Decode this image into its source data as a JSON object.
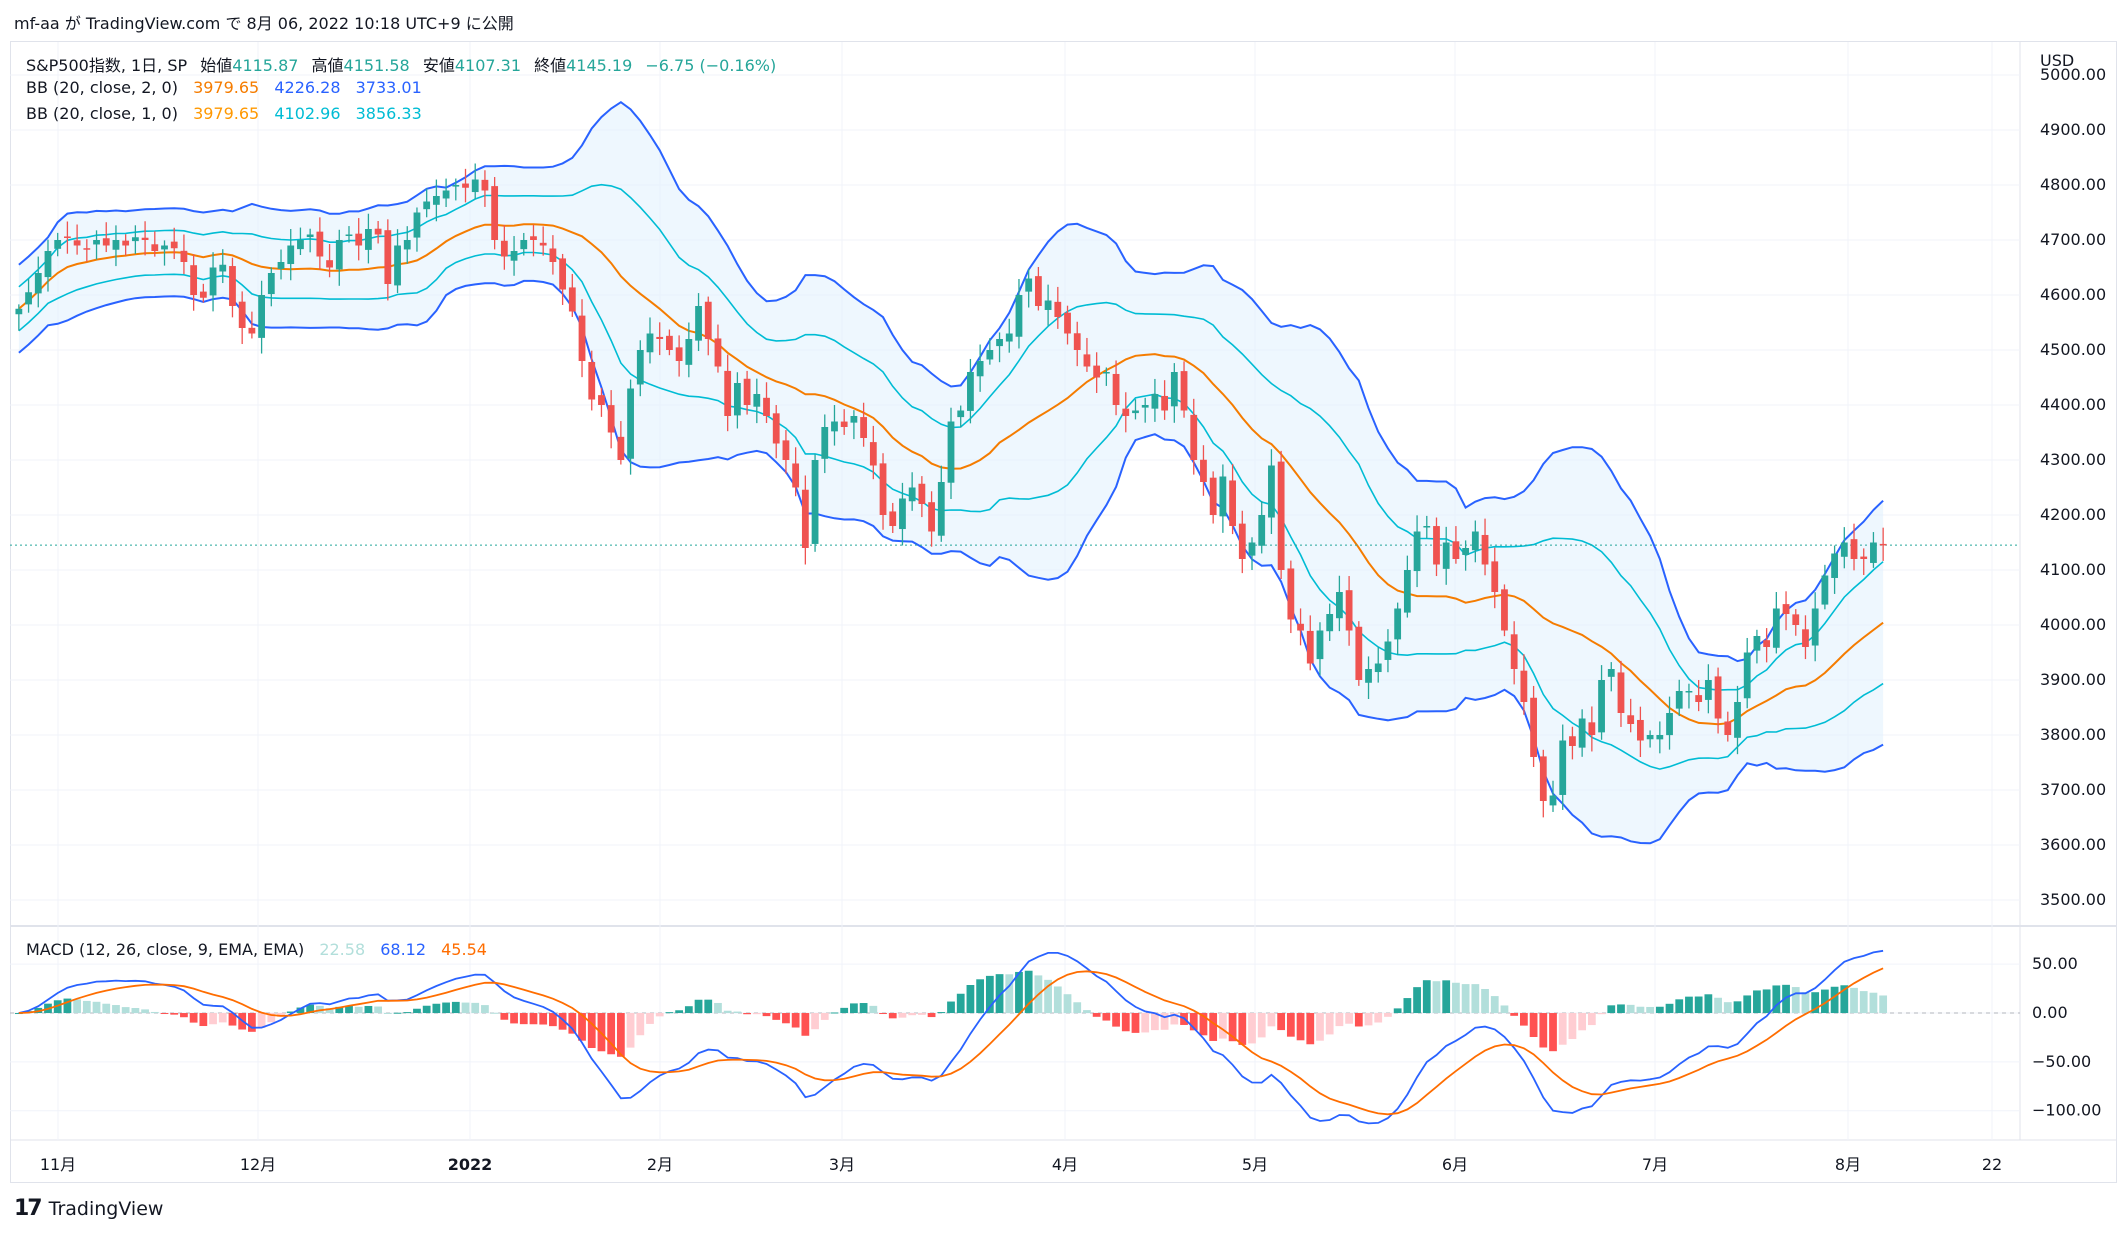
{
  "header": {
    "publish_line": "mf-aa が TradingView.com で 8月 06, 2022 10:18 UTC+9 に公開"
  },
  "legend": {
    "symbol": "S&P500指数, 1日, SP",
    "open_label": "始値",
    "open": "4115.87",
    "high_label": "高値",
    "high": "4151.58",
    "low_label": "安値",
    "low": "4107.31",
    "close_label": "終値",
    "close": "4145.19",
    "change": "−6.75 (−0.16%)",
    "bb2_label": "BB (20, close, 2, 0)",
    "bb2_basis": "3979.65",
    "bb2_upper": "4226.28",
    "bb2_lower": "3733.01",
    "bb1_label": "BB (20, close, 1, 0)",
    "bb1_basis": "3979.65",
    "bb1_upper": "4102.96",
    "bb1_lower": "3856.33",
    "macd_label": "MACD (12, 26, close, 9, EMA, EMA)",
    "macd_hist": "22.58",
    "macd_line": "68.12",
    "macd_signal": "45.54"
  },
  "footer": {
    "brand": "TradingView",
    "logo": "tv-logo-icon"
  },
  "colors": {
    "up": "#26a69a",
    "down": "#ef5350",
    "bb_outer": "#2962ff",
    "bb_inner": "#00bcd4",
    "basis": "#f57c00",
    "fill": "#e3f2fd",
    "macd": "#2962ff",
    "signal": "#ff6d00",
    "hist_up_strong": "#26a69a",
    "hist_up_weak": "#b2dfdb",
    "hist_down_strong": "#ff5252",
    "hist_down_weak": "#ffcdd2"
  },
  "chart_data": [
    {
      "type": "candlestick",
      "title": "S&P500指数, 1日, SP",
      "y_axis_unit": "USD",
      "y_ticks": [
        "3500.00",
        "3600.00",
        "3700.00",
        "3800.00",
        "3900.00",
        "4000.00",
        "4100.00",
        "4200.00",
        "4300.00",
        "4400.00",
        "4500.00",
        "4600.00",
        "4700.00",
        "4800.00",
        "4900.00",
        "5000.00"
      ],
      "ylim": [
        3460,
        5060
      ],
      "x_ticks": [
        "11月",
        "12月",
        "2022",
        "2月",
        "3月",
        "4月",
        "5月",
        "6月",
        "7月",
        "8月",
        "22"
      ],
      "last_price_line": 4145.19,
      "series_close": [
        4575,
        4605,
        4640,
        4680,
        4700,
        4705,
        4690,
        4685,
        4700,
        4690,
        4700,
        4690,
        4705,
        4700,
        4680,
        4690,
        4685,
        4660,
        4600,
        4595,
        4650,
        4655,
        4580,
        4540,
        4530,
        4600,
        4640,
        4660,
        4690,
        4700,
        4710,
        4670,
        4650,
        4700,
        4710,
        4690,
        4720,
        4710,
        4620,
        4690,
        4700,
        4750,
        4770,
        4780,
        4790,
        4800,
        4795,
        4810,
        4790,
        4700,
        4670,
        4680,
        4700,
        4700,
        4690,
        4660,
        4610,
        4570,
        4480,
        4410,
        4400,
        4350,
        4300,
        4430,
        4500,
        4530,
        4520,
        4500,
        4480,
        4520,
        4580,
        4520,
        4470,
        4380,
        4440,
        4400,
        4420,
        4380,
        4330,
        4300,
        4250,
        4140,
        4300,
        4360,
        4370,
        4360,
        4380,
        4340,
        4290,
        4200,
        4180,
        4230,
        4250,
        4220,
        4170,
        4260,
        4370,
        4390,
        4460,
        4480,
        4500,
        4520,
        4530,
        4600,
        4630,
        4580,
        4590,
        4560,
        4530,
        4500,
        4470,
        4450,
        4460,
        4400,
        4380,
        4390,
        4400,
        4420,
        4390,
        4460,
        4390,
        4300,
        4260,
        4200,
        4270,
        4180,
        4120,
        4150,
        4200,
        4290,
        4100,
        4010,
        3990,
        3930,
        3990,
        4020,
        4060,
        3990,
        3900,
        3920,
        3930,
        3970,
        4030,
        4100,
        4170,
        4180,
        4110,
        4150,
        4120,
        4140,
        4170,
        4110,
        4060,
        3990,
        3920,
        3860,
        3760,
        3680,
        3690,
        3790,
        3780,
        3830,
        3800,
        3900,
        3920,
        3840,
        3820,
        3790,
        3800,
        3800,
        3840,
        3880,
        3880,
        3860,
        3900,
        3830,
        3800,
        3860,
        3950,
        3980,
        3960,
        4030,
        4020,
        4000,
        3960,
        4030,
        4090,
        4130,
        4150,
        4120,
        4120,
        4150,
        4145
      ],
      "bb_basis_2_0": 3979.65,
      "bb_upper_2_0": 4226.28,
      "bb_lower_2_0": 3733.01,
      "bb_basis_1_0": 3979.65,
      "bb_upper_1_0": 4102.96,
      "bb_lower_1_0": 3856.33
    },
    {
      "type": "macd",
      "title": "MACD (12, 26, close, 9, EMA, EMA)",
      "y_ticks": [
        "50.00",
        "0.00",
        "−50.00",
        "−100.00"
      ],
      "ylim": [
        -130,
        85
      ],
      "last_values": {
        "histogram": 22.58,
        "macd": 68.12,
        "signal": 45.54
      }
    }
  ]
}
